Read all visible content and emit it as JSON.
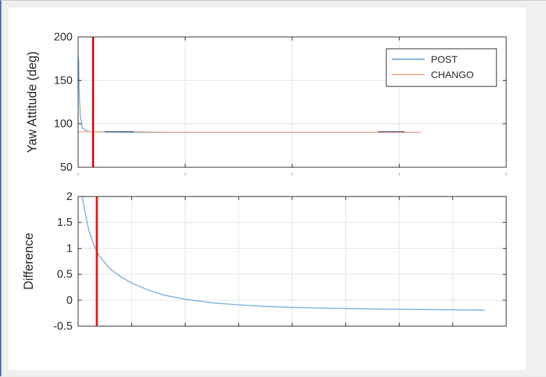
{
  "window": {
    "frame_color": "#4a78b0"
  },
  "chart_data": [
    {
      "type": "line",
      "title": "",
      "xlabel": "",
      "ylabel": "Yaw Attitude (deg)",
      "ylim": [
        50,
        200
      ],
      "yticks": [
        50,
        100,
        150,
        200
      ],
      "xlim": [
        0,
        4
      ],
      "x_tick_count": 5,
      "x_tick_labels_visible": false,
      "grid": true,
      "legend_position": "top-right",
      "series": [
        {
          "name": "POST",
          "color": "#7fb4dc",
          "x": [
            0,
            0.005,
            0.01,
            0.02,
            0.04,
            0.08,
            0.12,
            0.2,
            0.5,
            1.0,
            2.0,
            3.0,
            3.2
          ],
          "y": [
            178,
            172,
            140,
            110,
            95,
            92,
            91,
            90.5,
            90,
            90,
            90,
            90,
            90
          ]
        },
        {
          "name": "CHANGO",
          "color": "#f4b39a",
          "x": [
            0,
            0.5,
            1.0,
            2.0,
            3.0,
            3.2
          ],
          "y": [
            91,
            91,
            90,
            90,
            90,
            90
          ]
        }
      ],
      "segments": [
        {
          "x0": 0.25,
          "x1": 0.52,
          "y": 91,
          "color": "#5a6a88"
        },
        {
          "x0": 2.8,
          "x1": 3.05,
          "y": 91,
          "color": "#5a6a88"
        }
      ],
      "marker_x": 0.14,
      "marker_color": "#ee1111"
    },
    {
      "type": "line",
      "title": "",
      "xlabel": "",
      "ylabel": "Difference",
      "ylim": [
        -0.5,
        2
      ],
      "yticks": [
        -0.5,
        0,
        0.5,
        1,
        1.5,
        2
      ],
      "ytick_labels": [
        "-0.5",
        "0",
        "0.5",
        "1",
        "1.5",
        "2"
      ],
      "xlim": [
        0,
        8
      ],
      "x_tick_count": 9,
      "x_tick_labels_visible": false,
      "grid": true,
      "series": [
        {
          "color": "#7fb4dc",
          "x": [
            0.08,
            0.12,
            0.2,
            0.3,
            0.4,
            0.6,
            0.8,
            1.0,
            1.3,
            1.6,
            2.0,
            2.5,
            3.0,
            3.5,
            4.0,
            4.5,
            5.0,
            5.5,
            6.0,
            6.5,
            7.0,
            7.5,
            7.6
          ],
          "y": [
            2.0,
            1.75,
            1.35,
            1.05,
            0.85,
            0.6,
            0.45,
            0.33,
            0.2,
            0.1,
            0.02,
            -0.05,
            -0.09,
            -0.12,
            -0.14,
            -0.15,
            -0.16,
            -0.17,
            -0.175,
            -0.18,
            -0.185,
            -0.19,
            -0.195
          ]
        }
      ],
      "marker_x": 0.35,
      "marker_color": "#ee1111"
    }
  ]
}
